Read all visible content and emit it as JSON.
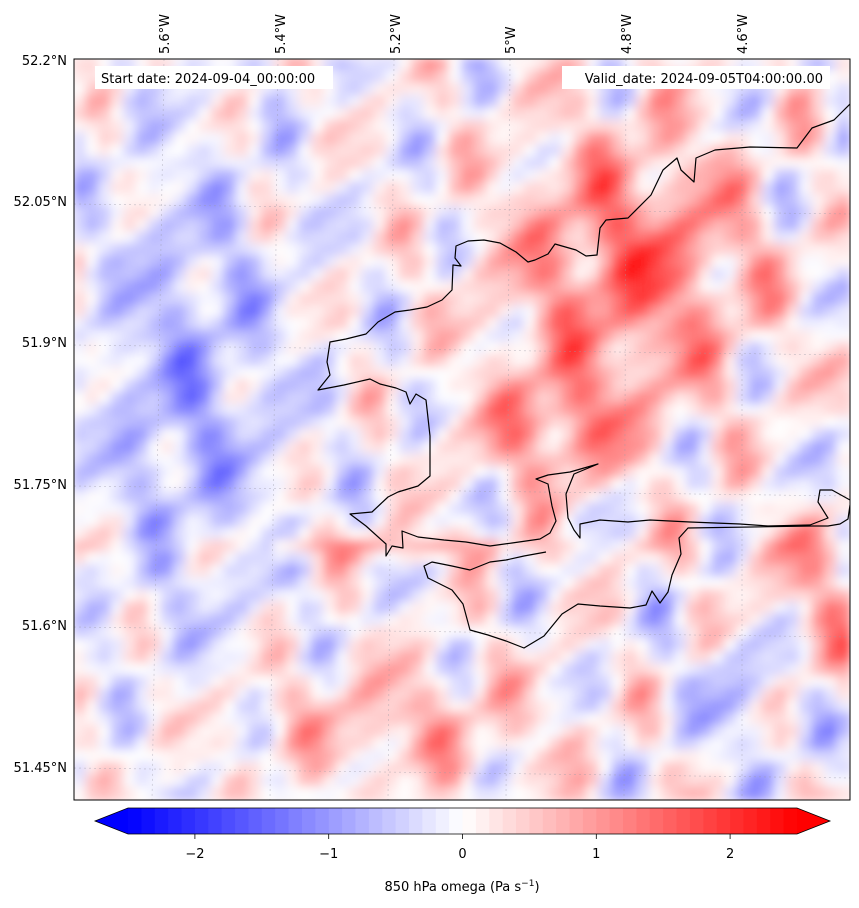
{
  "header": {
    "start_date": "Start date: 2024-09-04_00:00:00",
    "valid_date": "Valid_date: 2024-09-05T04:00:00.00"
  },
  "longitude_labels": [
    "5.6°W",
    "5.4°W",
    "5.2°W",
    "5°W",
    "4.8°W",
    "4.6°W"
  ],
  "latitude_labels": [
    "52.2°N",
    "52.05°N",
    "51.9°N",
    "51.75°N",
    "51.6°N",
    "51.45°N"
  ],
  "colorbar": {
    "ticks": [
      "−2",
      "−1",
      "0",
      "1",
      "2"
    ],
    "tick_values": [
      -2,
      -1,
      0,
      1,
      2
    ],
    "range": [
      -2.5,
      2.5
    ],
    "label_prefix": "850 hPa omega (Pa s",
    "label_exp": "−1",
    "label_suffix": ")",
    "colormap": "bwr",
    "extend": "both"
  },
  "colors": {
    "negative": "#0000ff",
    "zero": "#ffffff",
    "positive": "#ff0000",
    "coastline": "#000000",
    "gridline": "#9a9aa6"
  }
}
